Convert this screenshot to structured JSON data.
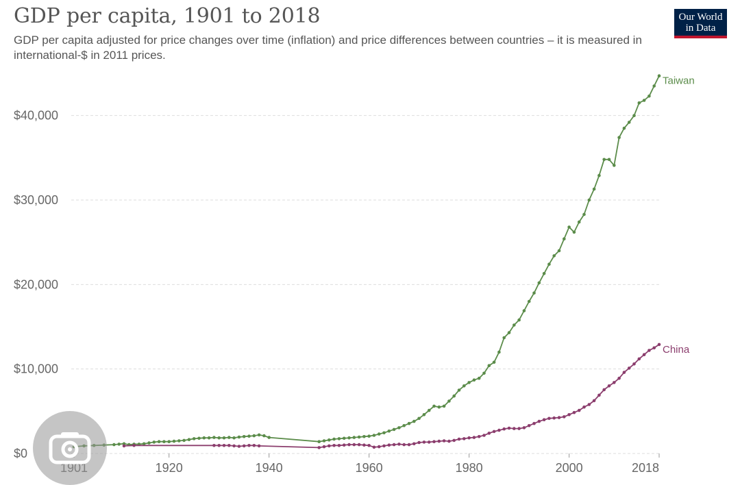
{
  "header": {
    "title": "GDP per capita, 1901 to 2018",
    "subtitle": "GDP per capita adjusted for price changes over time (inflation) and price differences between countries – it is measured in international-$ in 2011 prices."
  },
  "logo": {
    "line1": "Our World",
    "line2": "in Data",
    "bg_color": "#002147",
    "accent_color": "#c0162e"
  },
  "overlay": {
    "icon": "camera-lens-icon"
  },
  "chart_data": {
    "type": "line",
    "title": "GDP per capita, 1901 to 2018",
    "xlabel": "",
    "ylabel": "",
    "xlim": [
      1901,
      2018
    ],
    "ylim": [
      0,
      45000
    ],
    "x_ticks": [
      1901,
      1920,
      1940,
      1960,
      1980,
      2000,
      2018
    ],
    "x_tick_labels": [
      "1901",
      "1920",
      "1940",
      "1960",
      "1980",
      "2000",
      "2018"
    ],
    "y_ticks": [
      0,
      10000,
      20000,
      30000,
      40000
    ],
    "y_tick_labels": [
      "$0",
      "$10,000",
      "$20,000",
      "$30,000",
      "$40,000"
    ],
    "grid": "horizontal dashed",
    "legend": "inline labels at line ends",
    "series": [
      {
        "name": "Taiwan",
        "color": "#5b8c4a",
        "points": [
          [
            1901,
            800
          ],
          [
            1903,
            900
          ],
          [
            1905,
            950
          ],
          [
            1907,
            1000
          ],
          [
            1909,
            1050
          ],
          [
            1910,
            1100
          ],
          [
            1911,
            1150
          ],
          [
            1912,
            1050
          ],
          [
            1913,
            1100
          ],
          [
            1914,
            1100
          ],
          [
            1915,
            1150
          ],
          [
            1916,
            1250
          ],
          [
            1917,
            1350
          ],
          [
            1918,
            1400
          ],
          [
            1919,
            1400
          ],
          [
            1920,
            1400
          ],
          [
            1921,
            1450
          ],
          [
            1922,
            1500
          ],
          [
            1923,
            1550
          ],
          [
            1924,
            1650
          ],
          [
            1925,
            1750
          ],
          [
            1926,
            1800
          ],
          [
            1927,
            1850
          ],
          [
            1928,
            1850
          ],
          [
            1929,
            1900
          ],
          [
            1930,
            1850
          ],
          [
            1931,
            1850
          ],
          [
            1932,
            1900
          ],
          [
            1933,
            1850
          ],
          [
            1934,
            1950
          ],
          [
            1935,
            2000
          ],
          [
            1936,
            2050
          ],
          [
            1937,
            2100
          ],
          [
            1938,
            2200
          ],
          [
            1939,
            2100
          ],
          [
            1940,
            1900
          ],
          [
            1950,
            1400
          ],
          [
            1951,
            1500
          ],
          [
            1952,
            1600
          ],
          [
            1953,
            1700
          ],
          [
            1954,
            1750
          ],
          [
            1955,
            1800
          ],
          [
            1956,
            1850
          ],
          [
            1957,
            1900
          ],
          [
            1958,
            1950
          ],
          [
            1959,
            2000
          ],
          [
            1960,
            2050
          ],
          [
            1961,
            2150
          ],
          [
            1962,
            2300
          ],
          [
            1963,
            2450
          ],
          [
            1964,
            2650
          ],
          [
            1965,
            2850
          ],
          [
            1966,
            3050
          ],
          [
            1967,
            3300
          ],
          [
            1968,
            3550
          ],
          [
            1969,
            3800
          ],
          [
            1970,
            4150
          ],
          [
            1971,
            4600
          ],
          [
            1972,
            5100
          ],
          [
            1973,
            5600
          ],
          [
            1974,
            5500
          ],
          [
            1975,
            5600
          ],
          [
            1976,
            6200
          ],
          [
            1977,
            6800
          ],
          [
            1978,
            7500
          ],
          [
            1979,
            8000
          ],
          [
            1980,
            8400
          ],
          [
            1981,
            8700
          ],
          [
            1982,
            8900
          ],
          [
            1983,
            9500
          ],
          [
            1984,
            10400
          ],
          [
            1985,
            10800
          ],
          [
            1986,
            12000
          ],
          [
            1987,
            13700
          ],
          [
            1988,
            14300
          ],
          [
            1989,
            15200
          ],
          [
            1990,
            15800
          ],
          [
            1991,
            16900
          ],
          [
            1992,
            18000
          ],
          [
            1993,
            19000
          ],
          [
            1994,
            20200
          ],
          [
            1995,
            21300
          ],
          [
            1996,
            22400
          ],
          [
            1997,
            23400
          ],
          [
            1998,
            24000
          ],
          [
            1999,
            25400
          ],
          [
            2000,
            26800
          ],
          [
            2001,
            26200
          ],
          [
            2002,
            27400
          ],
          [
            2003,
            28300
          ],
          [
            2004,
            30000
          ],
          [
            2005,
            31300
          ],
          [
            2006,
            32900
          ],
          [
            2007,
            34800
          ],
          [
            2008,
            34800
          ],
          [
            2009,
            34100
          ],
          [
            2010,
            37400
          ],
          [
            2011,
            38500
          ],
          [
            2012,
            39200
          ],
          [
            2013,
            40000
          ],
          [
            2014,
            41500
          ],
          [
            2015,
            41800
          ],
          [
            2016,
            42300
          ],
          [
            2017,
            43500
          ],
          [
            2018,
            44700
          ]
        ]
      },
      {
        "name": "China",
        "color": "#8b3d6d",
        "points": [
          [
            1911,
            900
          ],
          [
            1913,
            950
          ],
          [
            1929,
            950
          ],
          [
            1930,
            950
          ],
          [
            1931,
            950
          ],
          [
            1932,
            950
          ],
          [
            1933,
            900
          ],
          [
            1934,
            850
          ],
          [
            1935,
            900
          ],
          [
            1936,
            950
          ],
          [
            1937,
            950
          ],
          [
            1938,
            900
          ],
          [
            1950,
            700
          ],
          [
            1951,
            800
          ],
          [
            1952,
            900
          ],
          [
            1953,
            950
          ],
          [
            1954,
            950
          ],
          [
            1955,
            1000
          ],
          [
            1956,
            1050
          ],
          [
            1957,
            1050
          ],
          [
            1958,
            1050
          ],
          [
            1959,
            1000
          ],
          [
            1960,
            950
          ],
          [
            1961,
            750
          ],
          [
            1962,
            800
          ],
          [
            1963,
            900
          ],
          [
            1964,
            1000
          ],
          [
            1965,
            1050
          ],
          [
            1966,
            1100
          ],
          [
            1967,
            1050
          ],
          [
            1968,
            1050
          ],
          [
            1969,
            1150
          ],
          [
            1970,
            1300
          ],
          [
            1971,
            1350
          ],
          [
            1972,
            1350
          ],
          [
            1973,
            1400
          ],
          [
            1974,
            1450
          ],
          [
            1975,
            1500
          ],
          [
            1976,
            1450
          ],
          [
            1977,
            1550
          ],
          [
            1978,
            1700
          ],
          [
            1979,
            1750
          ],
          [
            1980,
            1850
          ],
          [
            1981,
            1900
          ],
          [
            1982,
            2000
          ],
          [
            1983,
            2150
          ],
          [
            1984,
            2400
          ],
          [
            1985,
            2600
          ],
          [
            1986,
            2750
          ],
          [
            1987,
            2900
          ],
          [
            1988,
            3000
          ],
          [
            1989,
            2950
          ],
          [
            1990,
            2950
          ],
          [
            1991,
            3050
          ],
          [
            1992,
            3300
          ],
          [
            1993,
            3550
          ],
          [
            1994,
            3800
          ],
          [
            1995,
            4000
          ],
          [
            1996,
            4150
          ],
          [
            1997,
            4200
          ],
          [
            1998,
            4250
          ],
          [
            1999,
            4350
          ],
          [
            2000,
            4600
          ],
          [
            2001,
            4850
          ],
          [
            2002,
            5100
          ],
          [
            2003,
            5500
          ],
          [
            2004,
            5800
          ],
          [
            2005,
            6250
          ],
          [
            2006,
            6900
          ],
          [
            2007,
            7550
          ],
          [
            2008,
            8000
          ],
          [
            2009,
            8400
          ],
          [
            2010,
            8900
          ],
          [
            2011,
            9600
          ],
          [
            2012,
            10100
          ],
          [
            2013,
            10600
          ],
          [
            2014,
            11200
          ],
          [
            2015,
            11700
          ],
          [
            2016,
            12200
          ],
          [
            2017,
            12500
          ],
          [
            2018,
            12900
          ]
        ]
      }
    ]
  }
}
